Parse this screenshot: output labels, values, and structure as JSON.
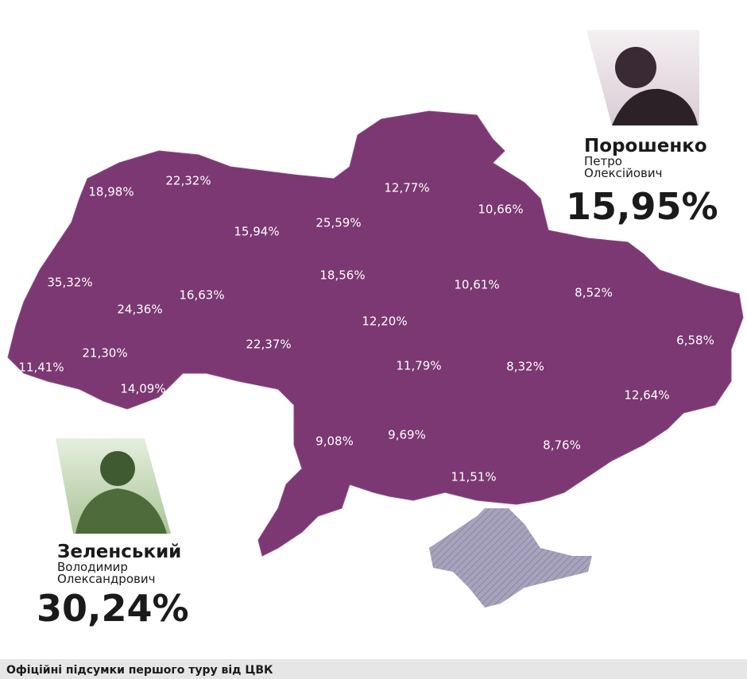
{
  "regions": [
    {
      "label": "18,98%"
    },
    {
      "label": "22,32%"
    },
    {
      "label": "15,94%"
    },
    {
      "label": "25,59%"
    },
    {
      "label": "12,77%"
    },
    {
      "label": "10,66%"
    },
    {
      "label": "35,32%"
    },
    {
      "label": "24,36%"
    },
    {
      "label": "16,63%"
    },
    {
      "label": "18,56%"
    },
    {
      "label": "10,61%"
    },
    {
      "label": "8,52%"
    },
    {
      "label": "12,20%"
    },
    {
      "label": "22,37%"
    },
    {
      "label": "21,30%"
    },
    {
      "label": "11,41%"
    },
    {
      "label": "14,09%"
    },
    {
      "label": "11,79%"
    },
    {
      "label": "8,32%"
    },
    {
      "label": "6,58%"
    },
    {
      "label": "12,64%"
    },
    {
      "label": "9,08%"
    },
    {
      "label": "9,69%"
    },
    {
      "label": "8,76%"
    },
    {
      "label": "11,51%"
    }
  ],
  "candidates": [
    {
      "surname": "Порошенко",
      "first_name": "Петро",
      "patronymic": "Олексійович",
      "result": "15,95%"
    },
    {
      "surname": "Зеленський",
      "first_name": "Володимир",
      "patronymic": "Олександрович",
      "result": "30,24%"
    }
  ],
  "footer": "Офіційні підсумки першого туру від ЦВК"
}
